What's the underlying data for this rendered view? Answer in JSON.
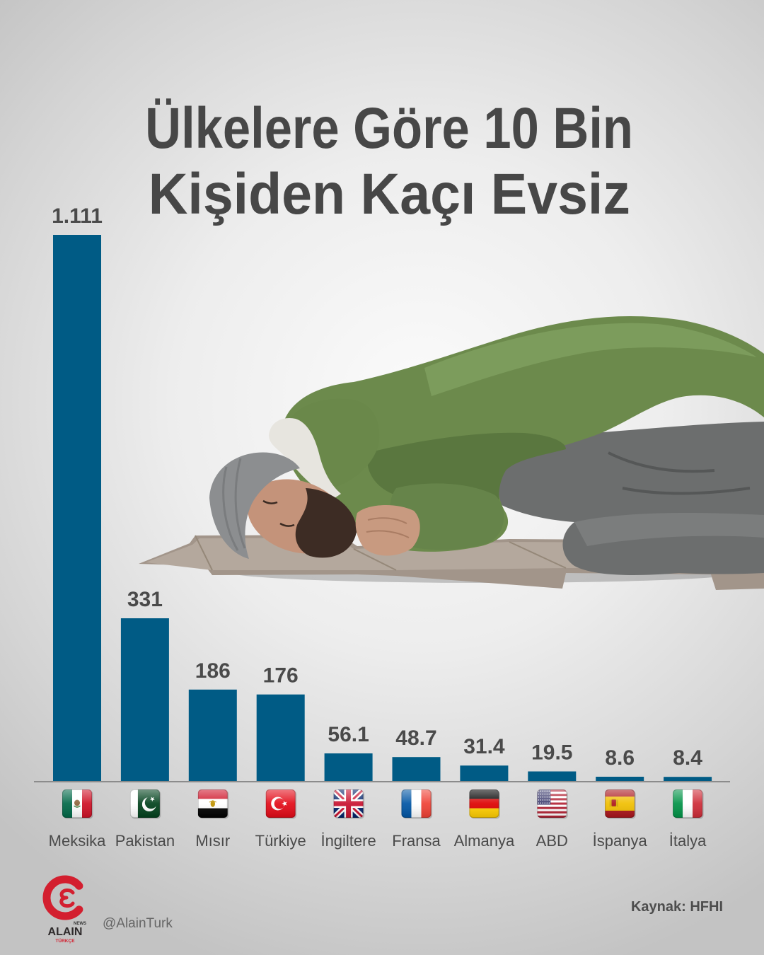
{
  "chart_data": {
    "type": "bar",
    "title_lines": [
      "Ülkelere Göre 10 Bin",
      "Kişiden Kaçı Evsiz"
    ],
    "categories": [
      "Meksika",
      "Pakistan",
      "Mısır",
      "Türkiye",
      "İngiltere",
      "Fransa",
      "Almanya",
      "ABD",
      "İspanya",
      "İtalya"
    ],
    "values": [
      1111,
      331,
      186,
      176,
      56.1,
      48.7,
      31.4,
      19.5,
      8.6,
      8.4
    ],
    "value_labels": [
      "1.111",
      "331",
      "186",
      "176",
      "56.1",
      "48.7",
      "31.4",
      "19.5",
      "8.6",
      "8.4"
    ],
    "xlabel": "",
    "ylabel": "",
    "ylim": [
      0,
      1111
    ],
    "grid": false,
    "bar_color": "#005b85"
  },
  "flags": [
    "flag-mexico-icon",
    "flag-pakistan-icon",
    "flag-egypt-icon",
    "flag-turkey-icon",
    "flag-uk-icon",
    "flag-france-icon",
    "flag-germany-icon",
    "flag-usa-icon",
    "flag-spain-icon",
    "flag-italy-icon"
  ],
  "source": "Kaynak: HFHI",
  "brand": {
    "name": "ALAIN",
    "tag": "NEWS",
    "edition": "TÜRKÇE",
    "handle": "@AlainTurk",
    "color": "#d31f2f"
  }
}
